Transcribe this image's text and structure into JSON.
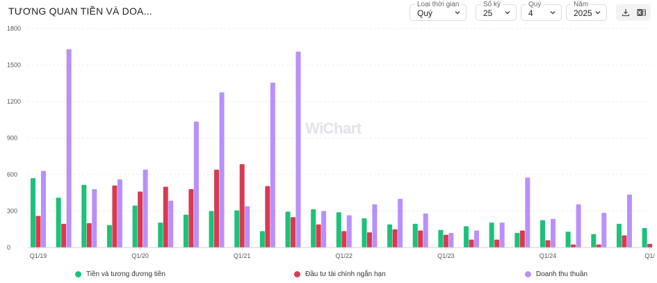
{
  "header": {
    "title": "TƯƠNG QUAN TIỀN VÀ DOA..."
  },
  "controls": {
    "time_type": {
      "label": "Loại thời gian",
      "value": "Quý"
    },
    "periods": {
      "label": "Số kỳ",
      "value": "25"
    },
    "quarter": {
      "label": "Quý",
      "value": "4"
    },
    "year": {
      "label": "Năm",
      "value": "2025"
    }
  },
  "toolbar": {
    "download_icon": "download-icon",
    "excel_icon": "excel-icon"
  },
  "watermark": "WiChart",
  "colors": {
    "cash": "#1cc279",
    "investment": "#d93a52",
    "revenue": "#b990fb"
  },
  "chart_data": {
    "type": "bar",
    "x_tick_labels": [
      "Q1/19",
      "Q1/20",
      "Q1/21",
      "Q1/22",
      "Q1/23",
      "Q1/24",
      "Q1/"
    ],
    "y_ticks": [
      0,
      300,
      600,
      900,
      1200,
      1500,
      1800
    ],
    "ylim": [
      0,
      1800
    ],
    "grid": true,
    "legend_position": "bottom",
    "series": [
      {
        "name": "Tiền và tương đương tiền",
        "values": [
          570,
          410,
          515,
          185,
          345,
          205,
          270,
          300,
          305,
          135,
          295,
          315,
          290,
          240,
          190,
          195,
          145,
          175,
          205,
          120,
          225,
          130,
          110,
          195,
          160
        ]
      },
      {
        "name": "Đầu tư tài chính ngắn hạn",
        "values": [
          260,
          195,
          200,
          510,
          460,
          500,
          480,
          640,
          685,
          505,
          250,
          190,
          135,
          125,
          150,
          140,
          105,
          65,
          65,
          140,
          60,
          25,
          25,
          100,
          30
        ]
      },
      {
        "name": "Doanh thu thuần",
        "values": [
          630,
          1630,
          480,
          560,
          640,
          385,
          1035,
          1275,
          340,
          1355,
          1610,
          300,
          265,
          355,
          400,
          280,
          120,
          140,
          205,
          575,
          235,
          355,
          285,
          435,
          0
        ]
      }
    ]
  }
}
